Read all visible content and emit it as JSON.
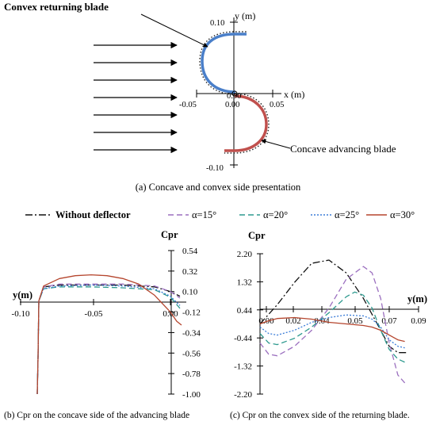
{
  "panel_a": {
    "caption": "(a) Concave and convex side presentation",
    "convex_label": "Convex returning blade",
    "concave_label": "Concave advancing blade",
    "y_axis_label": "y (m)",
    "x_axis_label": "x (m)",
    "y_ticks": [
      "0.10",
      "0.00",
      "-0.10"
    ],
    "x_ticks": [
      "-0.05",
      "0.00",
      "0.05"
    ],
    "arrow_count": 7,
    "colors": {
      "convex_blade": "#4a7fc9",
      "concave_blade": "#c0504d",
      "dots": "#222222"
    }
  },
  "legend": [
    {
      "label": "Without deflector",
      "color": "#111111",
      "dash": "9,3,2,3"
    },
    {
      "label": "α=15°",
      "color": "#9b6fbf",
      "dash": "7,4"
    },
    {
      "label": "α=20°",
      "color": "#2e9a8f",
      "dash": "7,4"
    },
    {
      "label": "α=25°",
      "color": "#3b7dd8",
      "dash": "2,2"
    },
    {
      "label": "α=30°",
      "color": "#b5452d",
      "dash": ""
    }
  ],
  "chart_data": [
    {
      "type": "line",
      "caption": "(b) Cpr on the concave side of the advancing blade",
      "ylabel": "Cpr",
      "xlabel": "y(m)",
      "x_ticks": [
        "-0.10",
        "-0.05",
        "0.00"
      ],
      "y_ticks": [
        "0.54",
        "0.32",
        "0.10",
        "-0.12",
        "-0.34",
        "-0.56",
        "-0.78",
        "-1.00"
      ],
      "xlim": [
        -0.105,
        0.0
      ],
      "ylim": [
        -1.0,
        0.54
      ],
      "series": [
        {
          "name": "Without deflector",
          "x": [
            -0.094,
            -0.0935,
            -0.093,
            -0.09,
            -0.08,
            -0.06,
            -0.04,
            -0.02,
            -0.01,
            -0.004
          ],
          "y": [
            -1.0,
            -0.6,
            0.0,
            0.15,
            0.17,
            0.17,
            0.17,
            0.15,
            0.1,
            0.05
          ]
        },
        {
          "name": "α=15°",
          "x": [
            -0.094,
            -0.0935,
            -0.093,
            -0.09,
            -0.08,
            -0.06,
            -0.04,
            -0.02,
            -0.01,
            -0.004
          ],
          "y": [
            -1.0,
            -0.6,
            0.0,
            0.15,
            0.18,
            0.18,
            0.18,
            0.16,
            0.1,
            0.03
          ]
        },
        {
          "name": "α=20°",
          "x": [
            -0.094,
            -0.0935,
            -0.093,
            -0.09,
            -0.08,
            -0.06,
            -0.04,
            -0.02,
            -0.01,
            -0.004
          ],
          "y": [
            -1.0,
            -0.6,
            0.0,
            0.13,
            0.15,
            0.15,
            0.14,
            0.12,
            0.04,
            -0.08
          ]
        },
        {
          "name": "α=25°",
          "x": [
            -0.094,
            -0.0935,
            -0.093,
            -0.09,
            -0.08,
            -0.06,
            -0.04,
            -0.02,
            -0.01,
            -0.004
          ],
          "y": [
            -1.0,
            -0.6,
            0.0,
            0.13,
            0.16,
            0.17,
            0.16,
            0.13,
            0.05,
            -0.05
          ]
        },
        {
          "name": "α=30°",
          "x": [
            -0.094,
            -0.0935,
            -0.093,
            -0.09,
            -0.08,
            -0.07,
            -0.06,
            -0.05,
            -0.04,
            -0.03,
            -0.02,
            -0.01,
            -0.006,
            -0.003
          ],
          "y": [
            -1.0,
            -0.6,
            0.0,
            0.16,
            0.24,
            0.27,
            0.28,
            0.27,
            0.24,
            0.18,
            0.06,
            -0.12,
            -0.22,
            -0.26
          ]
        }
      ]
    },
    {
      "type": "line",
      "caption": "(c) Cpr on the convex side of the returning blade.",
      "ylabel": "Cpr",
      "xlabel": "y(m)",
      "x_ticks": [
        "0.00",
        "0.02",
        "0.04",
        "0.05",
        "0.07",
        "0.09"
      ],
      "y_ticks": [
        "2.20",
        "1.32",
        "0.44",
        "-0.44",
        "-1.32",
        "-2.20"
      ],
      "xlim": [
        0.0,
        0.092
      ],
      "ylim": [
        -2.2,
        2.2
      ],
      "series": [
        {
          "name": "Without deflector",
          "x": [
            0.0,
            0.01,
            0.02,
            0.03,
            0.04,
            0.05,
            0.06,
            0.07,
            0.075,
            0.08,
            0.085
          ],
          "y": [
            0.0,
            0.6,
            1.3,
            1.9,
            2.0,
            1.6,
            0.8,
            -0.2,
            -0.7,
            -0.9,
            -0.9
          ]
        },
        {
          "name": "α=15°",
          "x": [
            0.0,
            0.005,
            0.01,
            0.02,
            0.03,
            0.04,
            0.05,
            0.06,
            0.065,
            0.07,
            0.075,
            0.08,
            0.084
          ],
          "y": [
            -0.6,
            -0.95,
            -1.0,
            -0.7,
            -0.2,
            0.5,
            1.4,
            1.8,
            1.6,
            0.8,
            -0.6,
            -1.6,
            -1.85
          ]
        },
        {
          "name": "α=20°",
          "x": [
            0.0,
            0.005,
            0.01,
            0.02,
            0.03,
            0.04,
            0.05,
            0.055,
            0.06,
            0.065,
            0.07,
            0.075,
            0.08,
            0.084
          ],
          "y": [
            -0.3,
            -0.6,
            -0.65,
            -0.45,
            -0.1,
            0.35,
            0.85,
            1.0,
            0.9,
            0.5,
            -0.2,
            -0.8,
            -1.1,
            -1.2
          ]
        },
        {
          "name": "α=25°",
          "x": [
            0.0,
            0.005,
            0.01,
            0.02,
            0.03,
            0.04,
            0.05,
            0.06,
            0.065,
            0.07,
            0.075,
            0.08,
            0.084
          ],
          "y": [
            -0.1,
            -0.3,
            -0.35,
            -0.2,
            0.05,
            0.2,
            0.28,
            0.25,
            0.15,
            -0.1,
            -0.5,
            -0.7,
            -0.75
          ]
        },
        {
          "name": "α=30°",
          "x": [
            0.0,
            0.005,
            0.01,
            0.02,
            0.03,
            0.04,
            0.05,
            0.06,
            0.065,
            0.07,
            0.075,
            0.08,
            0.084
          ],
          "y": [
            0.0,
            0.1,
            0.17,
            0.2,
            0.15,
            0.05,
            0.0,
            -0.05,
            -0.1,
            -0.2,
            -0.35,
            -0.5,
            -0.55
          ]
        }
      ]
    }
  ]
}
